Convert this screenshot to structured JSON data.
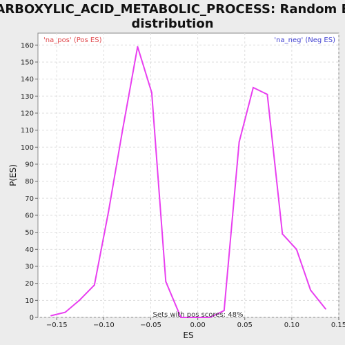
{
  "chart_data": {
    "type": "line",
    "title_line1": "CARBOXYLIC_ACID_METABOLIC_PROCESS: Random ES",
    "title_line2": "distribution",
    "xlabel": "ES",
    "ylabel": "P(ES)",
    "xlim": [
      -0.17,
      0.15
    ],
    "ylim": [
      0,
      167
    ],
    "x_ticks": [
      -0.15,
      -0.1,
      -0.05,
      0.0,
      0.05,
      0.1,
      0.15
    ],
    "x_tick_labels": [
      "−0.15",
      "−0.10",
      "−0.05",
      "0.00",
      "0.05",
      "0.10",
      "0.15"
    ],
    "y_ticks": [
      0,
      10,
      20,
      30,
      40,
      50,
      60,
      70,
      80,
      90,
      100,
      110,
      120,
      130,
      140,
      150,
      160
    ],
    "grid": true,
    "legend_pos_label": "'na_pos' (Pos ES)",
    "legend_neg_label": "'na_neg' (Neg ES)",
    "legend_pos_color": "#e0464a",
    "legend_neg_color": "#4040d0",
    "line_color": "#e83ff0",
    "annotation": "Sets with pos scores: 48%",
    "series": [
      {
        "x": [
          -0.156,
          -0.141,
          -0.126,
          -0.11,
          -0.095,
          -0.08,
          -0.064,
          -0.049,
          -0.034,
          -0.018,
          -0.003,
          0.013,
          0.028,
          0.044,
          0.059,
          0.074,
          0.09,
          0.105,
          0.12,
          0.136
        ],
        "y": [
          1,
          3,
          10,
          19,
          62,
          110,
          159,
          132,
          21,
          0,
          0,
          0,
          4,
          103,
          135,
          131,
          49,
          40,
          16,
          5
        ]
      }
    ]
  }
}
